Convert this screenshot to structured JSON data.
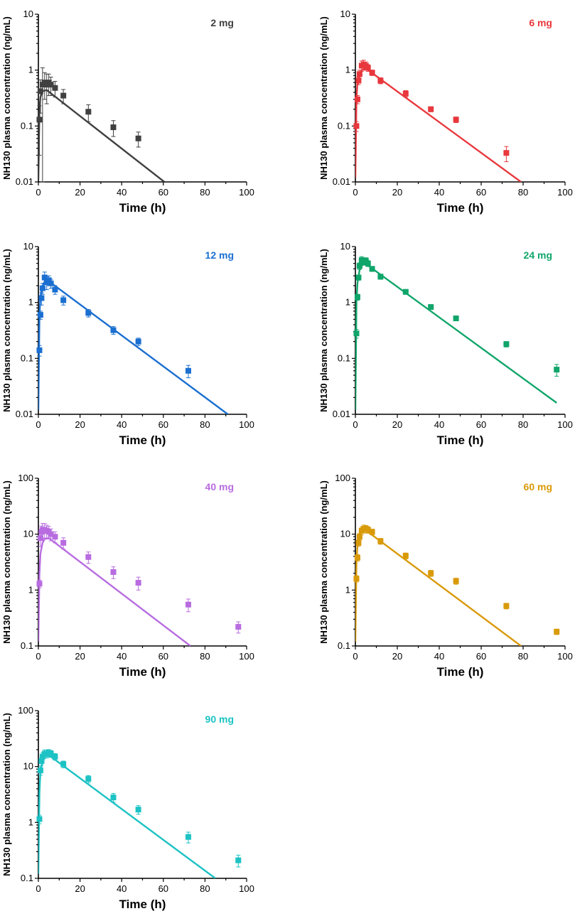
{
  "figure": {
    "chart_data": [
      {
        "type": "scatter+line",
        "title": "2 mg",
        "color": "#404040",
        "xlabel": "Time (h)",
        "ylabel": "NH130 plasma concentration (ng/mL)",
        "yscale": "log",
        "xlim": [
          0,
          100
        ],
        "ylim": [
          0.01,
          10
        ],
        "xticks": [
          "0",
          "20",
          "40",
          "60",
          "80",
          "100"
        ],
        "yticks": [
          "0.01",
          "0.1",
          "1",
          "10"
        ],
        "observed": [
          {
            "x": 0.5,
            "y": 0.13,
            "err": 0.1
          },
          {
            "x": 1,
            "y": 0.42,
            "err": 0.25
          },
          {
            "x": 2,
            "y": 0.55,
            "err": 0.55
          },
          {
            "x": 3,
            "y": 0.6,
            "err": 0.3
          },
          {
            "x": 4,
            "y": 0.55,
            "err": 0.3
          },
          {
            "x": 5,
            "y": 0.6,
            "err": 0.25
          },
          {
            "x": 6,
            "y": 0.55,
            "err": 0.2
          },
          {
            "x": 8,
            "y": 0.48,
            "err": 0.15
          },
          {
            "x": 12,
            "y": 0.35,
            "err": 0.1
          },
          {
            "x": 24,
            "y": 0.18,
            "err": 0.06
          },
          {
            "x": 36,
            "y": 0.095,
            "err": 0.03
          },
          {
            "x": 48,
            "y": 0.06,
            "err": 0.018
          }
        ],
        "model": [
          [
            0,
            0.011
          ],
          [
            0.5,
            0.2
          ],
          [
            1,
            0.33
          ],
          [
            2,
            0.42
          ],
          [
            4,
            0.44
          ],
          [
            60.5,
            0.01
          ]
        ]
      },
      {
        "type": "scatter+line",
        "title": "6 mg",
        "color": "#e8383d",
        "xlabel": "Time (h)",
        "ylabel": "NH130 plasma concentration (ng/mL)",
        "yscale": "log",
        "xlim": [
          0,
          100
        ],
        "ylim": [
          0.01,
          10
        ],
        "xticks": [
          "0",
          "20",
          "40",
          "60",
          "80",
          "100"
        ],
        "yticks": [
          "0.01",
          "0.1",
          "1",
          "10"
        ],
        "observed": [
          {
            "x": 0.5,
            "y": 0.1,
            "err": 0.02
          },
          {
            "x": 1,
            "y": 0.3,
            "err": 0.05
          },
          {
            "x": 1.5,
            "y": 0.65,
            "err": 0.1
          },
          {
            "x": 2,
            "y": 0.85,
            "err": 0.15
          },
          {
            "x": 3,
            "y": 1.2,
            "err": 0.25
          },
          {
            "x": 4,
            "y": 1.25,
            "err": 0.25
          },
          {
            "x": 5,
            "y": 1.2,
            "err": 0.2
          },
          {
            "x": 6,
            "y": 1.1,
            "err": 0.15
          },
          {
            "x": 8,
            "y": 0.9,
            "err": 0.1
          },
          {
            "x": 12,
            "y": 0.65,
            "err": 0.08
          },
          {
            "x": 24,
            "y": 0.38,
            "err": 0.05
          },
          {
            "x": 36,
            "y": 0.2,
            "err": 0.02
          },
          {
            "x": 48,
            "y": 0.13,
            "err": 0.015
          },
          {
            "x": 72,
            "y": 0.033,
            "err": 0.01
          }
        ],
        "model": [
          [
            0,
            0.012
          ],
          [
            0.5,
            0.3
          ],
          [
            1,
            0.6
          ],
          [
            2,
            0.85
          ],
          [
            3,
            1.0
          ],
          [
            5,
            1.07
          ],
          [
            79,
            0.01
          ]
        ]
      },
      {
        "type": "scatter+line",
        "title": "12 mg",
        "color": "#1a6fd0",
        "xlabel": "Time (h)",
        "ylabel": "NH130 plasma concentration (ng/mL)",
        "yscale": "log",
        "xlim": [
          0,
          100
        ],
        "ylim": [
          0.01,
          10
        ],
        "xticks": [
          "0",
          "20",
          "40",
          "60",
          "80",
          "100"
        ],
        "yticks": [
          "0.01",
          "0.1",
          "1",
          "10"
        ],
        "observed": [
          {
            "x": 0.5,
            "y": 0.14,
            "err": 0.03
          },
          {
            "x": 1,
            "y": 0.6,
            "err": 0.1
          },
          {
            "x": 1.5,
            "y": 1.2,
            "err": 0.3
          },
          {
            "x": 2,
            "y": 1.8,
            "err": 0.4
          },
          {
            "x": 3,
            "y": 2.8,
            "err": 0.7
          },
          {
            "x": 4,
            "y": 2.3,
            "err": 0.6
          },
          {
            "x": 5,
            "y": 2.5,
            "err": 0.5
          },
          {
            "x": 6,
            "y": 2.2,
            "err": 0.4
          },
          {
            "x": 8,
            "y": 1.7,
            "err": 0.3
          },
          {
            "x": 12,
            "y": 1.1,
            "err": 0.2
          },
          {
            "x": 24,
            "y": 0.65,
            "err": 0.1
          },
          {
            "x": 36,
            "y": 0.32,
            "err": 0.05
          },
          {
            "x": 48,
            "y": 0.2,
            "err": 0.03
          },
          {
            "x": 72,
            "y": 0.06,
            "err": 0.015
          }
        ],
        "model": [
          [
            0,
            0.012
          ],
          [
            0.5,
            0.6
          ],
          [
            1,
            1.3
          ],
          [
            2,
            2.0
          ],
          [
            3,
            2.35
          ],
          [
            5,
            2.4
          ],
          [
            91,
            0.01
          ]
        ]
      },
      {
        "type": "scatter+line",
        "title": "24 mg",
        "color": "#10a56a",
        "xlabel": "Time (h)",
        "ylabel": "NH130 plasma concentration (ng/mL)",
        "yscale": "log",
        "xlim": [
          0,
          100
        ],
        "ylim": [
          0.01,
          10
        ],
        "xticks": [
          "0",
          "20",
          "40",
          "60",
          "80",
          "100"
        ],
        "yticks": [
          "0.01",
          "0.1",
          "1",
          "10"
        ],
        "observed": [
          {
            "x": 0.5,
            "y": 0.28,
            "err": 0.05
          },
          {
            "x": 1,
            "y": 1.25,
            "err": 0.15
          },
          {
            "x": 1.5,
            "y": 2.8,
            "err": 0.3
          },
          {
            "x": 2,
            "y": 4.5,
            "err": 0.6
          },
          {
            "x": 3,
            "y": 5.7,
            "err": 0.9
          },
          {
            "x": 4,
            "y": 5.5,
            "err": 0.8
          },
          {
            "x": 5,
            "y": 5.6,
            "err": 0.7
          },
          {
            "x": 6,
            "y": 5.0,
            "err": 0.6
          },
          {
            "x": 8,
            "y": 4.0,
            "err": 0.4
          },
          {
            "x": 12,
            "y": 2.9,
            "err": 0.3
          },
          {
            "x": 24,
            "y": 1.55,
            "err": 0.15
          },
          {
            "x": 36,
            "y": 0.83,
            "err": 0.08
          },
          {
            "x": 48,
            "y": 0.52,
            "err": 0.05
          },
          {
            "x": 72,
            "y": 0.18,
            "err": 0.02
          },
          {
            "x": 96,
            "y": 0.063,
            "err": 0.015
          }
        ],
        "model": [
          [
            0,
            0.012
          ],
          [
            0.5,
            1.0
          ],
          [
            1,
            2.2
          ],
          [
            2,
            3.8
          ],
          [
            3,
            4.6
          ],
          [
            5,
            4.9
          ],
          [
            96,
            0.016
          ]
        ]
      },
      {
        "type": "scatter+line",
        "title": "40 mg",
        "color": "#b86ce0",
        "xlabel": "Time (h)",
        "ylabel": "NH130 plasma concentration (ng/mL)",
        "yscale": "log",
        "xlim": [
          0,
          100
        ],
        "ylim": [
          0.1,
          100
        ],
        "xticks": [
          "0",
          "20",
          "40",
          "60",
          "80",
          "100"
        ],
        "yticks": [
          "0.1",
          "1",
          "10",
          "100"
        ],
        "observed": [
          {
            "x": 0.5,
            "y": 1.3,
            "err": 0.2
          },
          {
            "x": 1,
            "y": 8.5,
            "err": 2.5
          },
          {
            "x": 1.5,
            "y": 11.0,
            "err": 3.0
          },
          {
            "x": 2,
            "y": 12.0,
            "err": 3.5
          },
          {
            "x": 3,
            "y": 12.0,
            "err": 3.5
          },
          {
            "x": 4,
            "y": 11.5,
            "err": 3.0
          },
          {
            "x": 5,
            "y": 11.0,
            "err": 2.8
          },
          {
            "x": 6,
            "y": 10.0,
            "err": 2.4
          },
          {
            "x": 8,
            "y": 9.0,
            "err": 2.0
          },
          {
            "x": 12,
            "y": 7.0,
            "err": 1.6
          },
          {
            "x": 24,
            "y": 3.9,
            "err": 0.9
          },
          {
            "x": 36,
            "y": 2.1,
            "err": 0.5
          },
          {
            "x": 48,
            "y": 1.35,
            "err": 0.35
          },
          {
            "x": 72,
            "y": 0.55,
            "err": 0.14
          },
          {
            "x": 96,
            "y": 0.22,
            "err": 0.05
          }
        ],
        "model": [
          [
            0,
            0.12
          ],
          [
            0.5,
            2.0
          ],
          [
            1,
            4.5
          ],
          [
            2,
            7.0
          ],
          [
            3,
            8.2
          ],
          [
            5,
            8.5
          ],
          [
            73,
            0.1
          ]
        ]
      },
      {
        "type": "scatter+line",
        "title": "60 mg",
        "color": "#d99a0a",
        "xlabel": "Time (h)",
        "ylabel": "NH130 plasma concentration (ng/mL)",
        "yscale": "log",
        "xlim": [
          0,
          100
        ],
        "ylim": [
          0.1,
          100
        ],
        "xticks": [
          "0",
          "20",
          "40",
          "60",
          "80",
          "100"
        ],
        "yticks": [
          "0.1",
          "1",
          "10",
          "100"
        ],
        "observed": [
          {
            "x": 0.5,
            "y": 1.6,
            "err": 0.2
          },
          {
            "x": 1,
            "y": 3.8,
            "err": 0.5
          },
          {
            "x": 1.5,
            "y": 7.0,
            "err": 0.9
          },
          {
            "x": 2,
            "y": 9.0,
            "err": 1.2
          },
          {
            "x": 3,
            "y": 11.5,
            "err": 1.8
          },
          {
            "x": 4,
            "y": 12.5,
            "err": 2.0
          },
          {
            "x": 5,
            "y": 12.5,
            "err": 1.8
          },
          {
            "x": 6,
            "y": 12.0,
            "err": 1.6
          },
          {
            "x": 8,
            "y": 11.0,
            "err": 1.3
          },
          {
            "x": 12,
            "y": 7.5,
            "err": 0.9
          },
          {
            "x": 24,
            "y": 4.1,
            "err": 0.5
          },
          {
            "x": 36,
            "y": 2.0,
            "err": 0.25
          },
          {
            "x": 48,
            "y": 1.45,
            "err": 0.18
          },
          {
            "x": 72,
            "y": 0.52,
            "err": 0.06
          },
          {
            "x": 96,
            "y": 0.18,
            "err": 0.02
          }
        ],
        "model": [
          [
            0,
            0.12
          ],
          [
            0.5,
            3.0
          ],
          [
            1,
            6.0
          ],
          [
            2,
            9.5
          ],
          [
            3,
            11.0
          ],
          [
            5,
            11.7
          ],
          [
            79,
            0.1
          ]
        ]
      },
      {
        "type": "scatter+line",
        "title": "90 mg",
        "color": "#1cc2c4",
        "xlabel": "Time (h)",
        "ylabel": "NH130 plasma concentration (ng/mL)",
        "yscale": "log",
        "xlim": [
          0,
          100
        ],
        "ylim": [
          0.1,
          100
        ],
        "xticks": [
          "0",
          "20",
          "40",
          "60",
          "80",
          "100"
        ],
        "yticks": [
          "0.1",
          "1",
          "10",
          "100"
        ],
        "observed": [
          {
            "x": 0.5,
            "y": 1.15,
            "err": 0.2
          },
          {
            "x": 1,
            "y": 8.5,
            "err": 1.5
          },
          {
            "x": 1.5,
            "y": 12.5,
            "err": 2.0
          },
          {
            "x": 2,
            "y": 15.0,
            "err": 2.5
          },
          {
            "x": 3,
            "y": 17.0,
            "err": 2.8
          },
          {
            "x": 4,
            "y": 17.0,
            "err": 2.8
          },
          {
            "x": 5,
            "y": 17.5,
            "err": 2.6
          },
          {
            "x": 6,
            "y": 17.0,
            "err": 2.4
          },
          {
            "x": 8,
            "y": 15.0,
            "err": 2.0
          },
          {
            "x": 12,
            "y": 11.0,
            "err": 1.5
          },
          {
            "x": 24,
            "y": 6.0,
            "err": 0.9
          },
          {
            "x": 36,
            "y": 2.8,
            "err": 0.5
          },
          {
            "x": 48,
            "y": 1.7,
            "err": 0.3
          },
          {
            "x": 72,
            "y": 0.55,
            "err": 0.12
          },
          {
            "x": 96,
            "y": 0.21,
            "err": 0.05
          }
        ],
        "model": [
          [
            0,
            0.12
          ],
          [
            0.5,
            3.5
          ],
          [
            1,
            8.0
          ],
          [
            2,
            12.5
          ],
          [
            3,
            15.0
          ],
          [
            5,
            16.0
          ],
          [
            85,
            0.1
          ]
        ]
      }
    ]
  }
}
